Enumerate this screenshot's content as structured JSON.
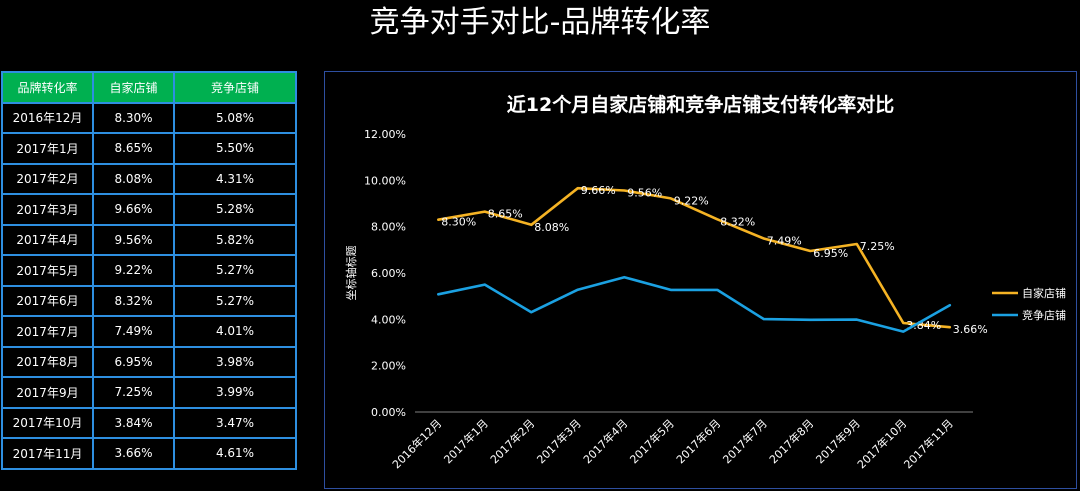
{
  "page_title": "竞争对手对比-品牌转化率",
  "table": {
    "headers": [
      "品牌转化率",
      "自家店铺",
      "竞争店铺"
    ],
    "rows": [
      [
        "2016年12月",
        "8.30%",
        "5.08%"
      ],
      [
        "2017年1月",
        "8.65%",
        "5.50%"
      ],
      [
        "2017年2月",
        "8.08%",
        "4.31%"
      ],
      [
        "2017年3月",
        "9.66%",
        "5.28%"
      ],
      [
        "2017年4月",
        "9.56%",
        "5.82%"
      ],
      [
        "2017年5月",
        "9.22%",
        "5.27%"
      ],
      [
        "2017年6月",
        "8.32%",
        "5.27%"
      ],
      [
        "2017年7月",
        "7.49%",
        "4.01%"
      ],
      [
        "2017年8月",
        "6.95%",
        "3.98%"
      ],
      [
        "2017年9月",
        "7.25%",
        "3.99%"
      ],
      [
        "2017年10月",
        "3.84%",
        "3.47%"
      ],
      [
        "2017年11月",
        "3.66%",
        "4.61%"
      ]
    ]
  },
  "chart_data": {
    "type": "line",
    "title": "近12个月自家店铺和竞争店铺支付转化率对比",
    "ylabel": "坐标轴标题",
    "xlabel": "",
    "ylim": [
      0,
      12
    ],
    "yticks": [
      "0.00%",
      "2.00%",
      "4.00%",
      "6.00%",
      "8.00%",
      "10.00%",
      "12.00%"
    ],
    "categories": [
      "2016年12月",
      "2017年1月",
      "2017年2月",
      "2017年3月",
      "2017年4月",
      "2017年5月",
      "2017年6月",
      "2017年7月",
      "2017年8月",
      "2017年9月",
      "2017年10月",
      "2017年11月"
    ],
    "series": [
      {
        "name": "自家店铺",
        "color": "#f5b324",
        "values": [
          8.3,
          8.65,
          8.08,
          9.66,
          9.56,
          9.22,
          8.32,
          7.49,
          6.95,
          7.25,
          3.84,
          3.66
        ],
        "labels": [
          "8.30%",
          "8.65%",
          "8.08%",
          "9.66%",
          "9.56%",
          "9.22%",
          "8.32%",
          "7.49%",
          "6.95%",
          "7.25%",
          "3.84%",
          "3.66%"
        ]
      },
      {
        "name": "竞争店铺",
        "color": "#1ba1e2",
        "values": [
          5.08,
          5.5,
          4.31,
          5.28,
          5.82,
          5.27,
          5.27,
          4.01,
          3.98,
          3.99,
          3.47,
          4.61
        ]
      }
    ],
    "legend_position": "right",
    "grid": false
  }
}
